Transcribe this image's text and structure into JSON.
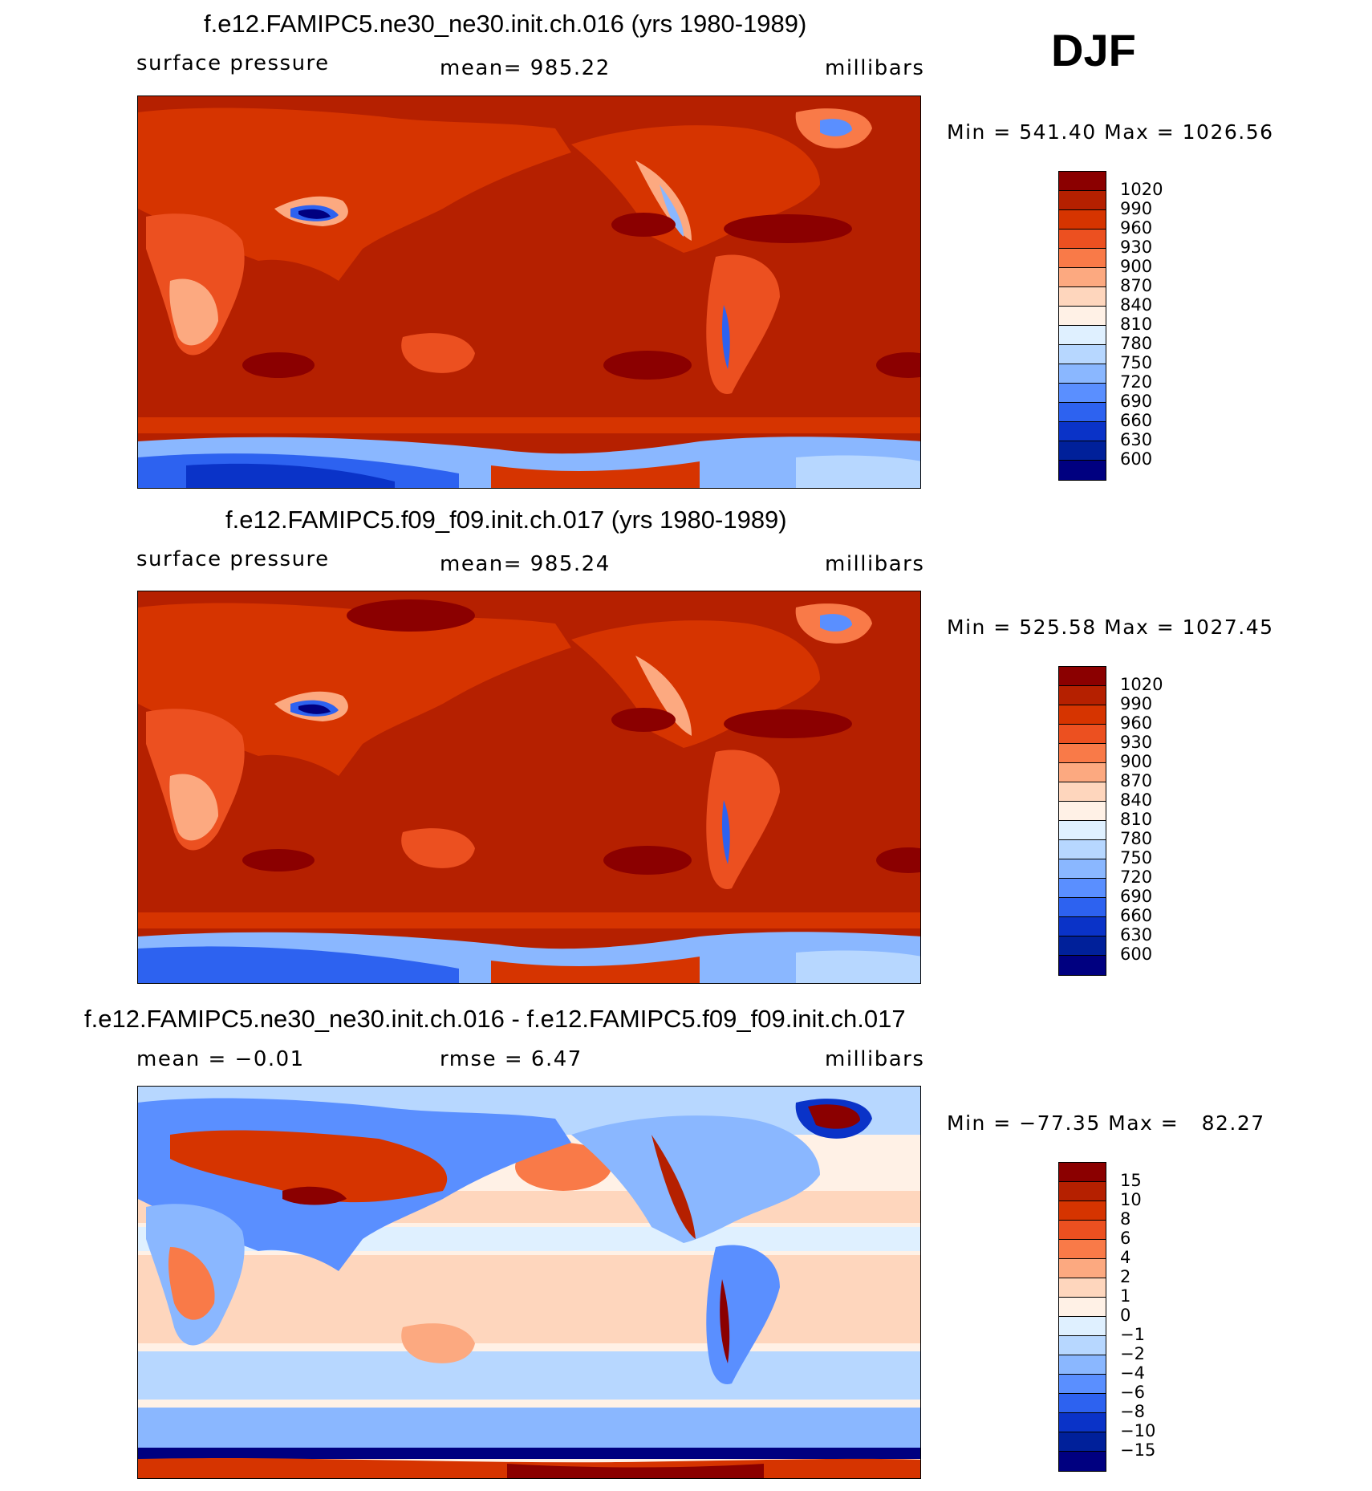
{
  "season": "DJF",
  "panels": [
    {
      "title": "f.e12.FAMIPC5.ne30_ne30.init.ch.016 (yrs 1980-1989)",
      "left_label": "surface pressure",
      "center_label": "mean= 985.22",
      "right_label": "millibars",
      "minmax": "Min = 541.40 Max = 1026.56",
      "colorbar": {
        "labels": [
          "1020",
          "990",
          "960",
          "930",
          "900",
          "870",
          "840",
          "810",
          "780",
          "750",
          "720",
          "690",
          "660",
          "630",
          "600"
        ],
        "colors": [
          "#8b0000",
          "#b52000",
          "#d63400",
          "#ec5020",
          "#f97a48",
          "#fca980",
          "#fed6bd",
          "#fff1e6",
          "#dff0ff",
          "#b7d7ff",
          "#8ab7ff",
          "#5a8fff",
          "#2d62f0",
          "#0a33c8",
          "#00209a",
          "#000080"
        ]
      }
    },
    {
      "title": "f.e12.FAMIPC5.f09_f09.init.ch.017 (yrs 1980-1989)",
      "left_label": "surface pressure",
      "center_label": "mean= 985.24",
      "right_label": "millibars",
      "minmax": "Min = 525.58 Max = 1027.45",
      "colorbar": {
        "labels": [
          "1020",
          "990",
          "960",
          "930",
          "900",
          "870",
          "840",
          "810",
          "780",
          "750",
          "720",
          "690",
          "660",
          "630",
          "600"
        ],
        "colors": [
          "#8b0000",
          "#b52000",
          "#d63400",
          "#ec5020",
          "#f97a48",
          "#fca980",
          "#fed6bd",
          "#fff1e6",
          "#dff0ff",
          "#b7d7ff",
          "#8ab7ff",
          "#5a8fff",
          "#2d62f0",
          "#0a33c8",
          "#00209a",
          "#000080"
        ]
      }
    },
    {
      "title": "f.e12.FAMIPC5.ne30_ne30.init.ch.016 - f.e12.FAMIPC5.f09_f09.init.ch.017",
      "left_label": "mean =   −0.01",
      "center_label": "rmse =    6.47",
      "right_label": "millibars",
      "minmax": "Min = −77.35 Max =   82.27",
      "colorbar": {
        "labels": [
          "15",
          "10",
          "8",
          "6",
          "4",
          "2",
          "1",
          "0",
          "−1",
          "−2",
          "−4",
          "−6",
          "−8",
          "−10",
          "−15"
        ],
        "colors": [
          "#8b0000",
          "#b52000",
          "#d63400",
          "#ec5020",
          "#f97a48",
          "#fca980",
          "#fed6bd",
          "#fff1e6",
          "#dff0ff",
          "#b7d7ff",
          "#8ab7ff",
          "#5a8fff",
          "#2d62f0",
          "#0a33c8",
          "#00209a",
          "#000080"
        ]
      }
    }
  ]
}
